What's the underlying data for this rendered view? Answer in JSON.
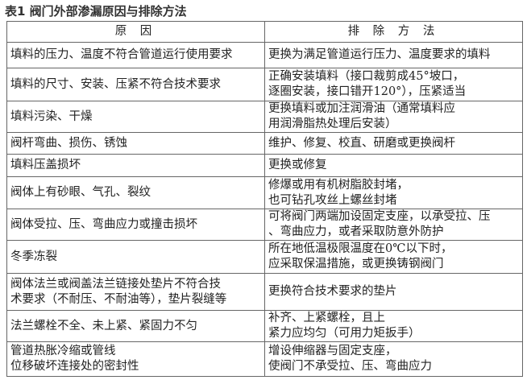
{
  "title": "表1 阀门外部渗漏原因与排除方法",
  "headers": [
    "原 因",
    "排 除 方 法"
  ],
  "rows": [
    [
      "填料的压力、温度不符合管道运行使用要求",
      "更换为满足管道运行压力、温度要求的填料"
    ],
    [
      "填料的尺寸、安装、压紧不符合技术要求",
      "正确安装填料（接口裁剪成45°坡口，\n逐圈安装，接口错开120°），压紧适当"
    ],
    [
      "填料污染、干燥",
      "更换填料或加注润滑油（通常填料应\n用润滑脂热处理后安装）"
    ],
    [
      "阀杆弯曲、损伤、锈蚀",
      "维护、修复、校直、研磨或更换阀杆"
    ],
    [
      "填料压盖损坏",
      "更换或修复"
    ],
    [
      "阀体上有砂眼、气孔、裂纹",
      "修爆或用有机树脂胶封堵，\n也可钻孔攻丝上螺丝封堵"
    ],
    [
      "阀体受拉、压、弯曲应力或撞击损坏",
      "可将阀门两端加设固定支座，以承受拉、压\n、弯曲应力，或者采取防意外防护"
    ],
    [
      "冬季冻裂",
      "所在地低温极限温度在0℃以下时，\n应采取保温措施，或更换铸钢阀门"
    ],
    [
      "阀体法兰或阀盖法兰链接处垫片不符合技\n术要求（不耐压、不耐油等），垫片裂缝等",
      "更换符合技术要求的垫片"
    ],
    [
      "法兰螺栓不全、未上紧、紧固力不匀",
      "补齐、上紧螺栓，且上\n紧力应均匀（可用力矩扳手）"
    ],
    [
      "管道热胀冷缩或管线\n位移破坏连接处的密封性",
      "增设伸缩器与固定支座，\n使阀门不承受拉、压、弯曲应力"
    ]
  ]
}
